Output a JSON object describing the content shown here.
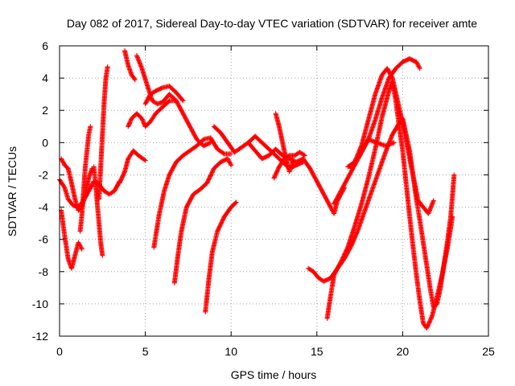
{
  "chart_data": {
    "type": "scatter",
    "title": "Day 082 of 2017, Sidereal Day-to-day VTEC variation (SDTVAR) for receiver amte",
    "xlabel": "GPS time / hours",
    "ylabel": "SDTVAR / TECUs",
    "xlim": [
      0,
      25
    ],
    "ylim": [
      -12,
      6
    ],
    "xticks": [
      0,
      5,
      10,
      15,
      20,
      25
    ],
    "yticks": [
      -12,
      -10,
      -8,
      -6,
      -4,
      -2,
      0,
      2,
      4,
      6
    ],
    "grid": true,
    "marker": "plus",
    "color": "#ff0000",
    "series": [
      {
        "points": [
          [
            0.0,
            -2.3
          ],
          [
            0.3,
            -2.8
          ],
          [
            0.5,
            -3.5
          ],
          [
            0.8,
            -3.9
          ],
          [
            1.1,
            -4.0
          ],
          [
            1.4,
            -3.6
          ],
          [
            1.7,
            -3.0
          ],
          [
            2.0,
            -2.4
          ],
          [
            2.3,
            -2.6
          ],
          [
            2.6,
            -3.0
          ],
          [
            2.9,
            -3.2
          ],
          [
            3.2,
            -3.0
          ],
          [
            3.5,
            -2.4
          ]
        ]
      },
      {
        "points": [
          [
            0.1,
            -4.2
          ],
          [
            0.3,
            -5.8
          ],
          [
            0.5,
            -7.2
          ],
          [
            0.7,
            -7.8
          ],
          [
            0.9,
            -7.0
          ],
          [
            1.1,
            -6.2
          ],
          [
            1.3,
            -6.6
          ]
        ]
      },
      {
        "points": [
          [
            0.1,
            -1.0
          ],
          [
            0.3,
            -1.4
          ],
          [
            0.5,
            -1.6
          ],
          [
            0.7,
            -2.5
          ],
          [
            0.9,
            -3.5
          ],
          [
            1.1,
            -4.2
          ],
          [
            1.3,
            -4.0
          ],
          [
            1.5,
            -3.2
          ],
          [
            1.7,
            -2.2
          ],
          [
            1.9,
            -1.6
          ]
        ]
      },
      {
        "points": [
          [
            1.2,
            -5.5
          ],
          [
            1.3,
            -4.5
          ],
          [
            1.4,
            -3.0
          ],
          [
            1.5,
            -1.5
          ],
          [
            1.6,
            -0.5
          ],
          [
            1.7,
            0.5
          ],
          [
            1.8,
            1.0
          ]
        ]
      },
      {
        "points": [
          [
            2.0,
            -1.5
          ],
          [
            2.1,
            -2.5
          ],
          [
            2.2,
            -3.8
          ],
          [
            2.3,
            -5.0
          ],
          [
            2.4,
            -6.2
          ],
          [
            2.5,
            -7.0
          ]
        ]
      },
      {
        "points": [
          [
            2.3,
            -3.5
          ],
          [
            2.4,
            -1.5
          ],
          [
            2.5,
            0.5
          ],
          [
            2.6,
            2.5
          ],
          [
            2.7,
            4.0
          ],
          [
            2.8,
            4.7
          ]
        ]
      },
      {
        "points": [
          [
            3.5,
            -2.5
          ],
          [
            3.8,
            -1.8
          ],
          [
            4.0,
            -1.0
          ],
          [
            4.3,
            -0.5
          ],
          [
            4.6,
            -0.8
          ],
          [
            5.0,
            -1.1
          ]
        ]
      },
      {
        "points": [
          [
            3.8,
            5.7
          ],
          [
            4.0,
            4.8
          ],
          [
            4.2,
            4.2
          ],
          [
            4.4,
            3.9
          ]
        ]
      },
      {
        "points": [
          [
            4.5,
            5.4
          ],
          [
            4.8,
            4.6
          ],
          [
            5.1,
            3.6
          ],
          [
            5.4,
            2.6
          ],
          [
            5.7,
            2.4
          ],
          [
            6.0,
            2.5
          ],
          [
            6.4,
            3.0
          ],
          [
            6.8,
            2.6
          ],
          [
            7.2,
            1.8
          ],
          [
            7.6,
            1.0
          ],
          [
            8.0,
            0.2
          ],
          [
            8.4,
            -0.2
          ],
          [
            8.8,
            0.0
          ]
        ]
      },
      {
        "points": [
          [
            4.0,
            1.0
          ],
          [
            4.2,
            1.5
          ],
          [
            4.5,
            1.8
          ],
          [
            4.8,
            1.5
          ],
          [
            5.0,
            1.0
          ],
          [
            5.3,
            1.3
          ],
          [
            5.6,
            1.8
          ],
          [
            6.0,
            2.2
          ],
          [
            6.4,
            2.6
          ],
          [
            6.8,
            2.6
          ]
        ]
      },
      {
        "points": [
          [
            5.0,
            2.4
          ],
          [
            5.3,
            3.0
          ],
          [
            5.6,
            3.2
          ],
          [
            6.0,
            3.4
          ],
          [
            6.4,
            3.5
          ],
          [
            6.8,
            3.1
          ],
          [
            7.2,
            2.6
          ]
        ]
      },
      {
        "points": [
          [
            5.5,
            -6.5
          ],
          [
            5.8,
            -4.5
          ],
          [
            6.1,
            -3.0
          ],
          [
            6.4,
            -2.0
          ],
          [
            6.8,
            -1.2
          ],
          [
            7.2,
            -0.8
          ],
          [
            7.6,
            -0.5
          ],
          [
            8.0,
            -0.2
          ],
          [
            8.4,
            0.2
          ],
          [
            8.8,
            0.3
          ],
          [
            9.2,
            -0.4
          ],
          [
            9.6,
            -0.7
          ],
          [
            10.0,
            -0.7
          ]
        ]
      },
      {
        "points": [
          [
            6.7,
            -8.7
          ],
          [
            6.9,
            -7.0
          ],
          [
            7.1,
            -5.5
          ],
          [
            7.4,
            -4.0
          ],
          [
            7.8,
            -3.2
          ],
          [
            8.2,
            -2.9
          ],
          [
            8.6,
            -2.5
          ],
          [
            9.0,
            -1.6
          ],
          [
            9.4,
            -1.2
          ],
          [
            9.8,
            -1.0
          ],
          [
            10.0,
            -1.4
          ]
        ]
      },
      {
        "points": [
          [
            8.5,
            -10.5
          ],
          [
            8.7,
            -8.5
          ],
          [
            8.9,
            -6.8
          ],
          [
            9.2,
            -5.5
          ],
          [
            9.6,
            -4.6
          ],
          [
            10.0,
            -4.0
          ],
          [
            10.3,
            -3.7
          ]
        ]
      },
      {
        "points": [
          [
            9.0,
            1.0
          ],
          [
            9.4,
            0.6
          ],
          [
            9.8,
            0.0
          ],
          [
            10.2,
            -0.6
          ],
          [
            10.6,
            -0.3
          ],
          [
            11.0,
            0.0
          ],
          [
            11.4,
            -0.5
          ],
          [
            11.8,
            -1.0
          ],
          [
            12.2,
            -0.8
          ],
          [
            12.6,
            -0.4
          ],
          [
            13.0,
            -0.8
          ],
          [
            13.4,
            -1.0
          ],
          [
            13.8,
            -1.2
          ],
          [
            14.2,
            -1.0
          ],
          [
            14.6,
            -1.6
          ],
          [
            15.0,
            -2.4
          ],
          [
            15.4,
            -3.2
          ],
          [
            15.8,
            -4.0
          ],
          [
            16.0,
            -4.4
          ],
          [
            16.2,
            -3.6
          ],
          [
            16.6,
            -2.8
          ]
        ]
      },
      {
        "points": [
          [
            11.0,
            0.0
          ],
          [
            11.4,
            0.4
          ],
          [
            11.8,
            0.0
          ],
          [
            12.2,
            -0.4
          ],
          [
            12.6,
            -0.8
          ],
          [
            13.0,
            -1.2
          ],
          [
            13.4,
            -1.6
          ],
          [
            13.8,
            -1.4
          ],
          [
            14.2,
            -1.2
          ]
        ]
      },
      {
        "points": [
          [
            12.5,
            -2.2
          ],
          [
            12.8,
            -1.5
          ],
          [
            13.1,
            -1.0
          ],
          [
            13.4,
            -0.8
          ],
          [
            13.7,
            -0.8
          ],
          [
            14.0,
            -0.6
          ],
          [
            14.3,
            -0.8
          ]
        ]
      },
      {
        "points": [
          [
            12.6,
            1.8
          ],
          [
            12.8,
            1.0
          ],
          [
            13.0,
            0.0
          ],
          [
            13.2,
            -1.0
          ],
          [
            13.4,
            -1.8
          ],
          [
            13.6,
            -1.2
          ]
        ]
      },
      {
        "points": [
          [
            14.5,
            -7.8
          ],
          [
            14.8,
            -8.0
          ],
          [
            15.1,
            -8.4
          ],
          [
            15.4,
            -8.6
          ],
          [
            15.8,
            -8.4
          ],
          [
            16.2,
            -7.8
          ],
          [
            16.6,
            -7.2
          ],
          [
            17.0,
            -6.4
          ],
          [
            17.4,
            -5.4
          ],
          [
            17.8,
            -4.2
          ],
          [
            18.2,
            -3.0
          ],
          [
            18.6,
            -1.8
          ],
          [
            19.0,
            -0.6
          ],
          [
            19.4,
            0.5
          ],
          [
            19.8,
            1.2
          ],
          [
            20.0,
            1.5
          ],
          [
            20.2,
            0.5
          ],
          [
            20.4,
            -0.5
          ],
          [
            20.6,
            -2.0
          ],
          [
            20.8,
            -3.5
          ],
          [
            21.0,
            -4.8
          ],
          [
            21.2,
            -6.2
          ],
          [
            21.4,
            -7.6
          ],
          [
            21.6,
            -9.0
          ],
          [
            21.8,
            -10.2
          ],
          [
            22.0,
            -10.0
          ],
          [
            22.2,
            -9.0
          ],
          [
            22.4,
            -7.6
          ],
          [
            22.6,
            -6.2
          ],
          [
            22.8,
            -4.6
          ],
          [
            23.0,
            -2.0
          ]
        ]
      },
      {
        "points": [
          [
            15.6,
            -10.9
          ],
          [
            15.8,
            -9.5
          ],
          [
            16.0,
            -8.2
          ],
          [
            16.4,
            -7.4
          ],
          [
            16.8,
            -6.5
          ],
          [
            17.2,
            -5.2
          ],
          [
            17.6,
            -3.8
          ],
          [
            18.0,
            -2.2
          ],
          [
            18.4,
            -0.4
          ],
          [
            18.8,
            1.6
          ],
          [
            19.2,
            3.2
          ],
          [
            19.4,
            3.8
          ],
          [
            19.6,
            2.6
          ],
          [
            19.8,
            1.0
          ],
          [
            20.0,
            -0.5
          ],
          [
            20.2,
            -2.5
          ],
          [
            20.4,
            -4.5
          ],
          [
            20.6,
            -6.4
          ],
          [
            20.8,
            -8.2
          ],
          [
            21.0,
            -9.8
          ],
          [
            21.2,
            -11.2
          ],
          [
            21.4,
            -11.5
          ],
          [
            21.7,
            -10.8
          ],
          [
            22.0,
            -9.6
          ],
          [
            22.3,
            -8.2
          ],
          [
            22.6,
            -6.6
          ],
          [
            22.9,
            -4.6
          ]
        ]
      },
      {
        "points": [
          [
            16.0,
            -3.8
          ],
          [
            16.4,
            -3.0
          ],
          [
            16.8,
            -2.2
          ],
          [
            17.2,
            -1.4
          ],
          [
            17.6,
            -0.6
          ],
          [
            18.0,
            0.2
          ],
          [
            18.4,
            1.4
          ],
          [
            18.8,
            2.8
          ],
          [
            19.2,
            4.0
          ],
          [
            19.6,
            4.6
          ],
          [
            20.0,
            5.0
          ],
          [
            20.4,
            5.2
          ],
          [
            20.8,
            5.0
          ],
          [
            21.0,
            4.6
          ]
        ]
      },
      {
        "points": [
          [
            16.8,
            -1.5
          ],
          [
            17.2,
            -1.2
          ],
          [
            17.6,
            -0.2
          ],
          [
            18.0,
            1.4
          ],
          [
            18.4,
            3.0
          ],
          [
            18.8,
            4.2
          ],
          [
            19.1,
            4.6
          ],
          [
            19.4,
            4.0
          ],
          [
            19.7,
            2.6
          ],
          [
            20.0,
            1.2
          ],
          [
            20.3,
            -0.4
          ],
          [
            20.6,
            -2.0
          ],
          [
            20.9,
            -3.6
          ],
          [
            21.2,
            -4.0
          ],
          [
            21.5,
            -4.4
          ],
          [
            21.8,
            -3.6
          ]
        ]
      },
      {
        "points": [
          [
            17.0,
            -1.6
          ],
          [
            17.5,
            -0.8
          ],
          [
            18.0,
            0.2
          ],
          [
            18.5,
            0.0
          ],
          [
            19.0,
            -0.2
          ],
          [
            19.5,
            0.0
          ]
        ]
      }
    ]
  }
}
